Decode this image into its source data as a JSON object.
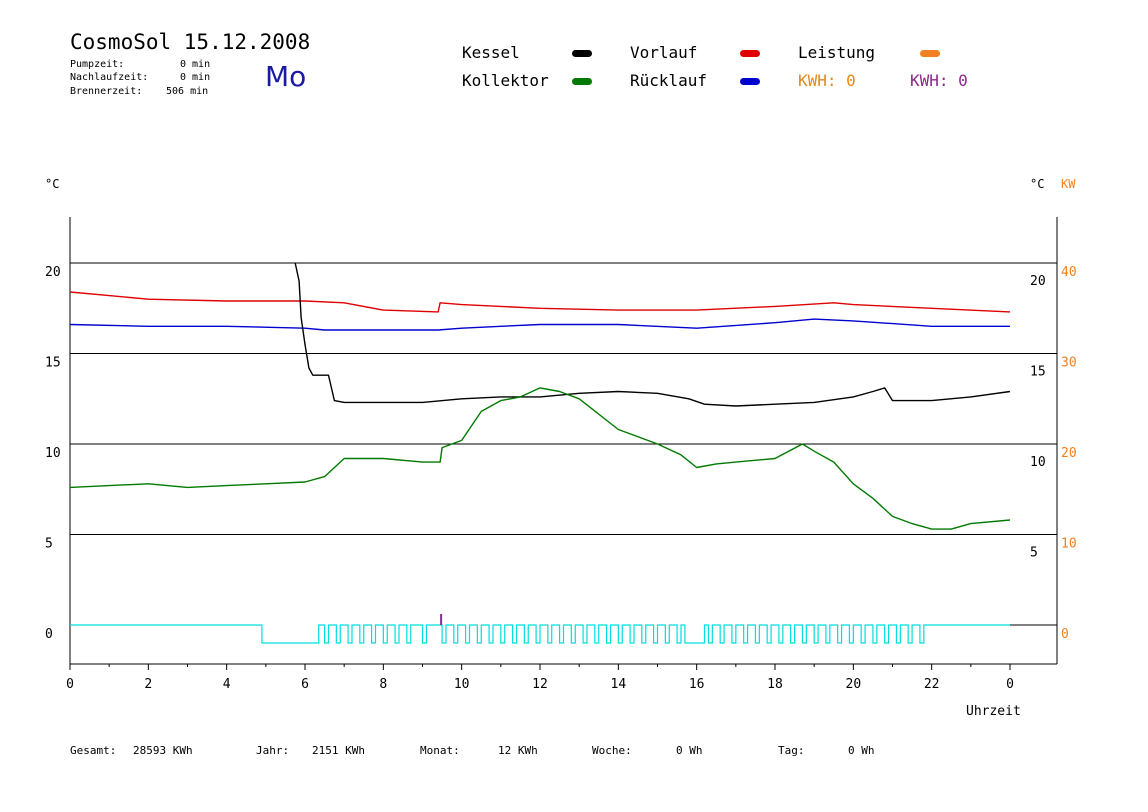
{
  "header": {
    "title": "CosmoSol 15.12.2008",
    "pumpzeit_label": "Pumpzeit:",
    "pumpzeit_value": "0 min",
    "nachlaufzeit_label": "Nachlaufzeit:",
    "nachlaufzeit_value": "0 min",
    "brennerzeit_label": "Brennerzeit:",
    "brennerzeit_value": "506 min",
    "day": "Mo"
  },
  "legend": {
    "kessel": "Kessel",
    "vorlauf": "Vorlauf",
    "leistung": "Leistung",
    "kollektor": "Kollektor",
    "ruecklauf": "Rücklauf",
    "kwh1": "KWH: 0",
    "kwh2": "KWH: 0"
  },
  "colors": {
    "kessel": "#000000",
    "vorlauf": "#e00000",
    "leistung": "#f08020",
    "kollektor": "#007a00",
    "ruecklauf": "#0000d0",
    "pump": "#00dede",
    "kwh2": "#8a2a8a",
    "grid": "#000000"
  },
  "footer": {
    "gesamt_label": "Gesamt:",
    "gesamt_value": "28593 KWh",
    "jahr_label": "Jahr:",
    "jahr_value": "2151 KWh",
    "monat_label": "Monat:",
    "monat_value": "12 KWh",
    "woche_label": "Woche:",
    "woche_value": "0 Wh",
    "tag_label": "Tag:",
    "tag_value": "0 Wh"
  },
  "chart_data": {
    "type": "line",
    "xlabel": "Uhrzeit",
    "x_ticks": [
      "0",
      "2",
      "4",
      "6",
      "8",
      "10",
      "12",
      "14",
      "16",
      "18",
      "20",
      "22",
      "0"
    ],
    "xlim": [
      0,
      24
    ],
    "left_axis": {
      "unit": "°C",
      "ticks": [
        "0",
        "5",
        "10",
        "15",
        "20"
      ],
      "ylim": [
        -2,
        22.5
      ]
    },
    "right_axis_inner": {
      "unit": "°C",
      "ticks": [
        "5",
        "10",
        "15",
        "20"
      ]
    },
    "right_axis_outer": {
      "unit": "KW",
      "ticks": [
        "0",
        "10",
        "20",
        "30",
        "40"
      ]
    },
    "grid_y": [
      5,
      10,
      15,
      20
    ],
    "series": [
      {
        "name": "Vorlauf",
        "color": "#e00000",
        "x": [
          0,
          1,
          2,
          4,
          6,
          7,
          8,
          9.4,
          9.45,
          10,
          11,
          12,
          14,
          16,
          18,
          19.5,
          20,
          22,
          24
        ],
        "y": [
          18.4,
          18.2,
          18.0,
          17.9,
          17.9,
          17.8,
          17.4,
          17.3,
          17.8,
          17.7,
          17.6,
          17.5,
          17.4,
          17.4,
          17.6,
          17.8,
          17.7,
          17.5,
          17.3
        ]
      },
      {
        "name": "Rücklauf",
        "color": "#0000d0",
        "x": [
          0,
          2,
          4,
          6,
          6.5,
          9.4,
          10,
          11,
          12,
          14,
          16,
          18,
          19,
          20,
          22,
          24
        ],
        "y": [
          16.6,
          16.5,
          16.5,
          16.4,
          16.3,
          16.3,
          16.4,
          16.5,
          16.6,
          16.6,
          16.4,
          16.7,
          16.9,
          16.8,
          16.5,
          16.5
        ]
      },
      {
        "name": "Kessel",
        "color": "#000000",
        "x": [
          5.75,
          5.85,
          5.9,
          6.0,
          6.1,
          6.2,
          6.6,
          6.75,
          7.0,
          8,
          9,
          10,
          11,
          12,
          13,
          14,
          15,
          15.8,
          16.2,
          17,
          18,
          19,
          20,
          20.5,
          20.8,
          21,
          22,
          23,
          24
        ],
        "y": [
          20,
          19,
          17,
          15.5,
          14.2,
          13.8,
          13.8,
          12.4,
          12.3,
          12.3,
          12.3,
          12.5,
          12.6,
          12.6,
          12.8,
          12.9,
          12.8,
          12.5,
          12.2,
          12.1,
          12.2,
          12.3,
          12.6,
          12.9,
          13.1,
          12.4,
          12.4,
          12.6,
          12.9
        ]
      },
      {
        "name": "Kollektor",
        "color": "#007a00",
        "x": [
          0,
          1,
          2,
          3,
          4,
          5,
          6,
          6.5,
          7,
          8,
          9,
          9.45,
          9.5,
          10,
          10.5,
          11,
          11.5,
          12,
          12.5,
          13,
          14,
          15,
          15.6,
          16,
          16.5,
          17,
          18,
          18.7,
          19,
          19.5,
          20,
          20.5,
          21,
          21.5,
          22,
          22.5,
          23,
          24
        ],
        "y": [
          7.6,
          7.7,
          7.8,
          7.6,
          7.7,
          7.8,
          7.9,
          8.2,
          9.2,
          9.2,
          9.0,
          9.0,
          9.8,
          10.2,
          11.8,
          12.4,
          12.6,
          13.1,
          12.9,
          12.5,
          10.8,
          10.0,
          9.4,
          8.7,
          8.9,
          9.0,
          9.2,
          10.0,
          9.6,
          9.0,
          7.8,
          7.0,
          6.0,
          5.6,
          5.3,
          5.3,
          5.6,
          5.8
        ]
      },
      {
        "name": "Pumpe",
        "color": "#00dede",
        "type": "pulse",
        "intervals": [
          [
            4.9,
            6.35
          ],
          [
            6.5,
            6.6
          ],
          [
            6.8,
            6.9
          ],
          [
            7.1,
            7.2
          ],
          [
            7.4,
            7.5
          ],
          [
            7.7,
            7.8
          ],
          [
            8.0,
            8.1
          ],
          [
            8.3,
            8.4
          ],
          [
            8.6,
            8.7
          ],
          [
            9.0,
            9.1
          ],
          [
            9.5,
            9.6
          ],
          [
            9.8,
            9.9
          ],
          [
            10.1,
            10.2
          ],
          [
            10.4,
            10.5
          ],
          [
            10.7,
            10.8
          ],
          [
            11.0,
            11.1
          ],
          [
            11.3,
            11.4
          ],
          [
            11.6,
            11.7
          ],
          [
            11.9,
            12.0
          ],
          [
            12.2,
            12.3
          ],
          [
            12.5,
            12.6
          ],
          [
            12.8,
            12.9
          ],
          [
            13.1,
            13.2
          ],
          [
            13.4,
            13.5
          ],
          [
            13.7,
            13.8
          ],
          [
            14.0,
            14.1
          ],
          [
            14.3,
            14.4
          ],
          [
            14.6,
            14.7
          ],
          [
            14.9,
            15.0
          ],
          [
            15.2,
            15.3
          ],
          [
            15.5,
            15.6
          ],
          [
            15.7,
            16.2
          ],
          [
            16.3,
            16.4
          ],
          [
            16.6,
            16.7
          ],
          [
            16.9,
            17.0
          ],
          [
            17.2,
            17.3
          ],
          [
            17.5,
            17.6
          ],
          [
            17.8,
            17.9
          ],
          [
            18.1,
            18.2
          ],
          [
            18.4,
            18.5
          ],
          [
            18.7,
            18.8
          ],
          [
            19.0,
            19.1
          ],
          [
            19.3,
            19.4
          ],
          [
            19.6,
            19.7
          ],
          [
            19.9,
            20.0
          ],
          [
            20.2,
            20.3
          ],
          [
            20.5,
            20.6
          ],
          [
            20.8,
            20.9
          ],
          [
            21.1,
            21.2
          ],
          [
            21.4,
            21.5
          ],
          [
            21.7,
            21.8
          ]
        ]
      }
    ]
  }
}
